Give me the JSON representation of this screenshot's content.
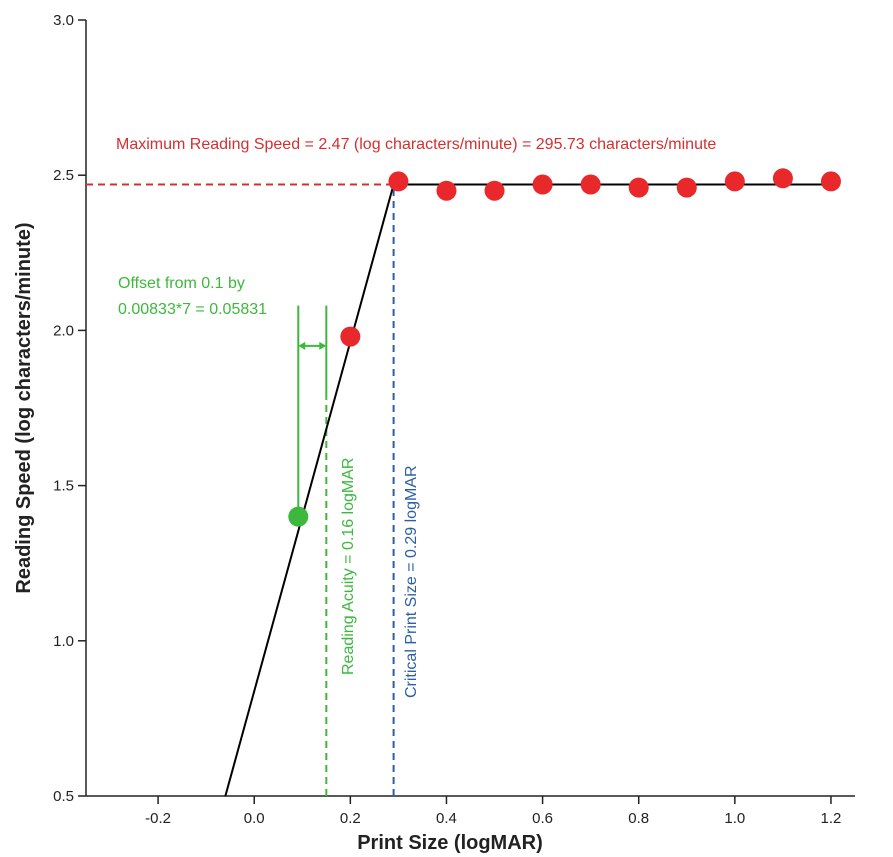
{
  "chart_data": {
    "type": "scatter",
    "xlabel": "Print Size (logMAR)",
    "ylabel": "Reading Speed (log characters/minute)",
    "xlim": [
      -0.35,
      1.25
    ],
    "ylim": [
      0.5,
      3.0
    ],
    "x_ticks": [
      -0.2,
      0.0,
      0.2,
      0.4,
      0.6,
      0.8,
      1.0,
      1.2
    ],
    "y_ticks": [
      0.5,
      1.0,
      1.5,
      2.0,
      2.5,
      3.0
    ],
    "x_tick_labels": [
      "-0.2",
      "0.0",
      "0.2",
      "0.4",
      "0.6",
      "0.8",
      "1.0",
      "1.2"
    ],
    "y_tick_labels": [
      "0.5",
      "1.0",
      "1.5",
      "2.0",
      "2.5",
      "3.0"
    ],
    "grid": false,
    "series": [
      {
        "color": "#e8282b",
        "points": [
          {
            "x": 0.2,
            "y": 1.98
          },
          {
            "x": 0.3,
            "y": 2.48
          },
          {
            "x": 0.4,
            "y": 2.45
          },
          {
            "x": 0.5,
            "y": 2.45
          },
          {
            "x": 0.6,
            "y": 2.47
          },
          {
            "x": 0.7,
            "y": 2.47
          },
          {
            "x": 0.8,
            "y": 2.46
          },
          {
            "x": 0.9,
            "y": 2.46
          },
          {
            "x": 1.0,
            "y": 2.48
          },
          {
            "x": 1.1,
            "y": 2.49
          },
          {
            "x": 1.2,
            "y": 2.48
          }
        ]
      },
      {
        "color": "#3db83d",
        "points": [
          {
            "x": 0.0917,
            "y": 1.4
          }
        ]
      }
    ],
    "fit_line": {
      "color": "#000000",
      "points": [
        [
          -0.06,
          0.5
        ],
        [
          0.29,
          2.47
        ],
        [
          1.2,
          2.47
        ]
      ]
    },
    "reference_lines": [
      {
        "orientation": "horizontal",
        "value": 2.47,
        "color": "#d62f2f",
        "x_from": -0.35,
        "x_to": 0.29
      },
      {
        "orientation": "vertical",
        "value": 0.29,
        "color": "#2d5fa8",
        "y_from": 0.5,
        "y_to": 2.47
      },
      {
        "orientation": "vertical",
        "value": 0.15,
        "color": "#3db83d",
        "y_from": 0.5,
        "y_to": 1.78
      }
    ],
    "offset_bracket": {
      "color": "#3db83d",
      "x_left": 0.0917,
      "x_right": 0.15,
      "y": 1.95,
      "y_top": 2.08,
      "y_bottom": 1.4
    },
    "annotations": [
      {
        "text": "Maximum Reading Speed = 2.47 (log characters/minute) = 295.73 characters/minute",
        "color": "#d62f2f"
      },
      {
        "text": "Offset from 0.1 by",
        "color": "#3db83d"
      },
      {
        "text": "0.00833*7 = 0.05831",
        "color": "#3db83d"
      },
      {
        "text": "Reading Acuity = 0.16 logMAR",
        "color": "#3db83d"
      },
      {
        "text": "Critical Print Size = 0.29 logMAR",
        "color": "#2d5fa8"
      }
    ]
  }
}
